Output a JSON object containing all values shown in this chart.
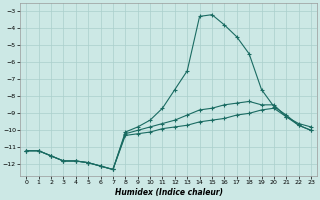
{
  "xlabel": "Humidex (Indice chaleur)",
  "background_color": "#cce8e5",
  "grid_color": "#aacfcc",
  "line_color": "#1a6b62",
  "xlim": [
    -0.5,
    23.5
  ],
  "ylim": [
    -12.7,
    -2.5
  ],
  "yticks": [
    -3,
    -4,
    -5,
    -6,
    -7,
    -8,
    -9,
    -10,
    -11,
    -12
  ],
  "xticks": [
    0,
    1,
    2,
    3,
    4,
    5,
    6,
    7,
    8,
    9,
    10,
    11,
    12,
    13,
    14,
    15,
    16,
    17,
    18,
    19,
    20,
    21,
    22,
    23
  ],
  "c1_x": [
    0,
    1,
    2,
    3,
    4,
    5,
    6,
    7,
    8,
    9,
    10,
    11,
    12,
    13,
    14,
    15,
    16,
    17,
    18,
    19,
    20,
    21,
    22,
    23
  ],
  "c1_y": [
    -11.2,
    -11.2,
    -11.5,
    -11.8,
    -11.8,
    -11.9,
    -12.1,
    -12.3,
    -10.3,
    -10.2,
    -10.1,
    -9.9,
    -9.8,
    -9.7,
    -9.5,
    -9.4,
    -9.3,
    -9.1,
    -9.0,
    -8.8,
    -8.7,
    -9.2,
    -9.6,
    -9.8
  ],
  "c2_x": [
    0,
    1,
    2,
    3,
    4,
    5,
    6,
    7,
    8,
    9,
    10,
    11,
    12,
    13,
    14,
    15,
    16,
    17,
    18,
    19,
    20,
    21,
    22,
    23
  ],
  "c2_y": [
    -11.2,
    -11.2,
    -11.5,
    -11.8,
    -11.8,
    -11.9,
    -12.1,
    -12.3,
    -10.1,
    -9.8,
    -9.4,
    -8.7,
    -7.6,
    -6.5,
    -3.3,
    -3.2,
    -3.8,
    -4.5,
    -5.5,
    -7.6,
    -8.6,
    -9.1,
    -9.7,
    -10.0
  ],
  "c3_x": [
    0,
    1,
    2,
    3,
    4,
    5,
    6,
    7,
    8,
    9,
    10,
    11,
    12,
    13,
    14,
    15,
    16,
    17,
    18,
    19,
    20,
    21,
    22,
    23
  ],
  "c3_y": [
    -11.2,
    -11.2,
    -11.5,
    -11.8,
    -11.8,
    -11.9,
    -12.1,
    -12.3,
    -10.2,
    -10.0,
    -9.8,
    -9.6,
    -9.4,
    -9.1,
    -8.8,
    -8.7,
    -8.5,
    -8.4,
    -8.3,
    -8.5,
    -8.5,
    -9.2,
    -9.7,
    -10.0
  ],
  "xlabel_fontsize": 5.5,
  "tick_fontsize": 4.5
}
